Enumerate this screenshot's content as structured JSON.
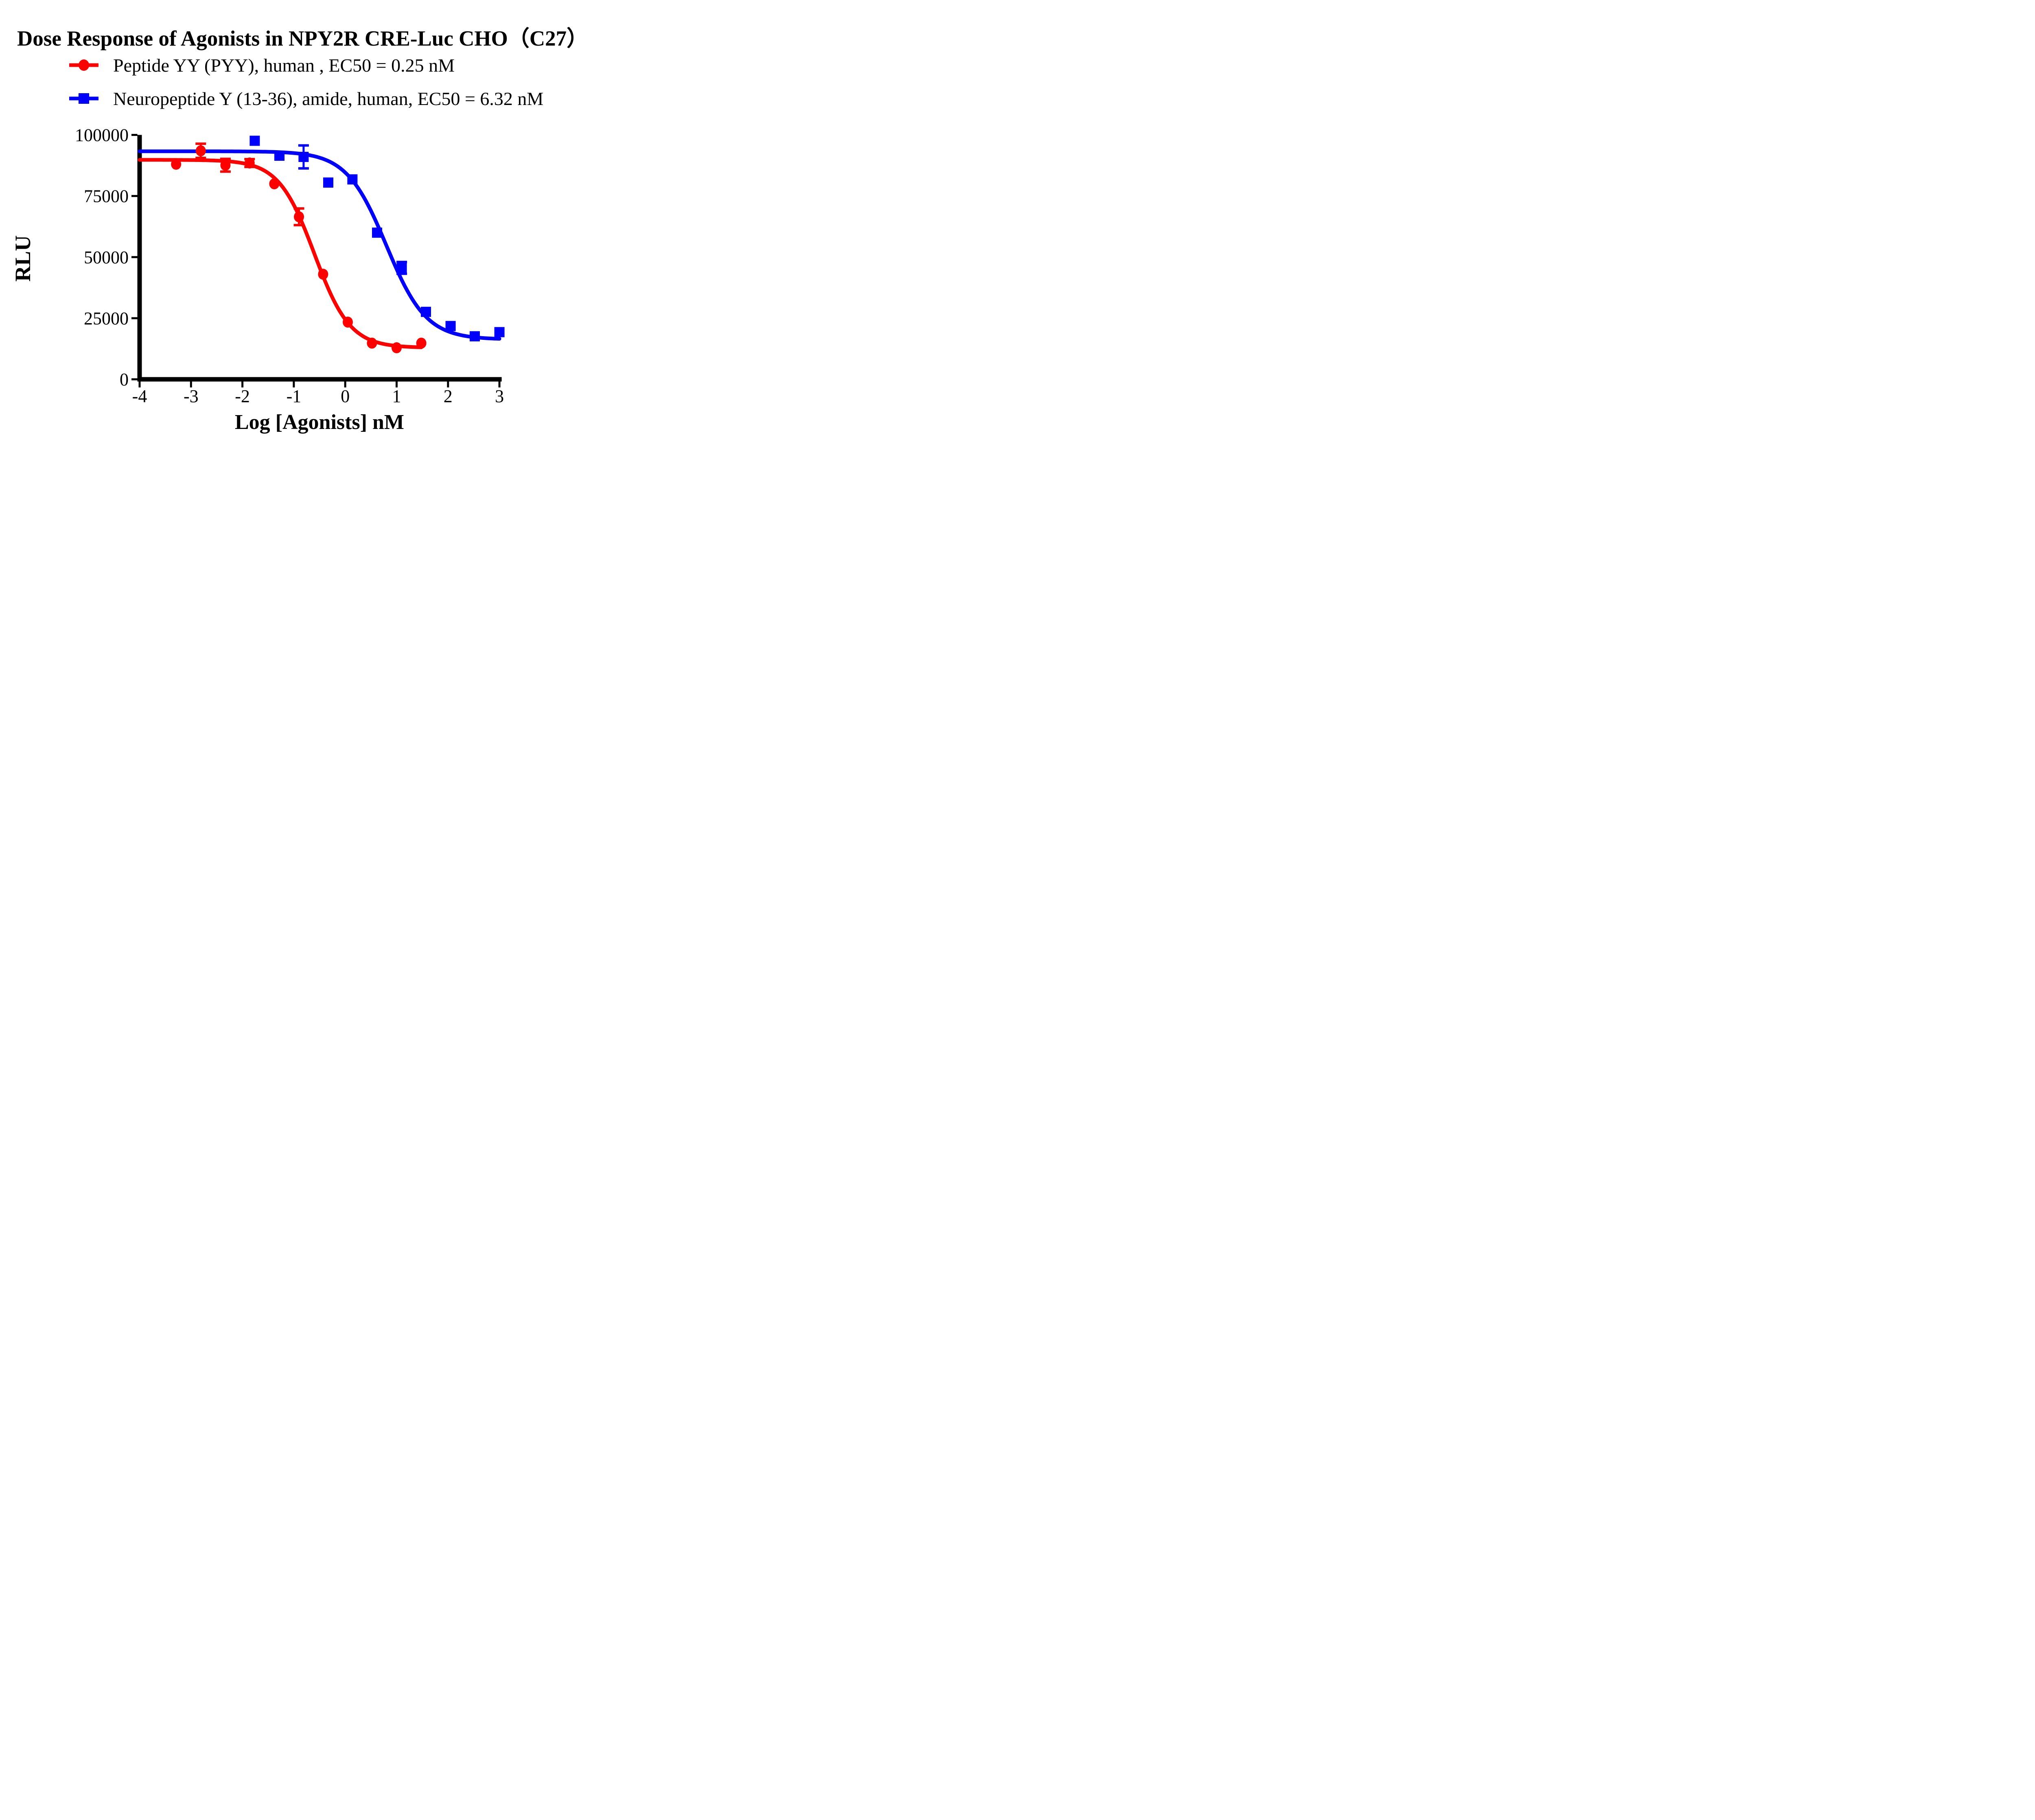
{
  "title": "Dose Response of Agonists in NPY2R CRE-Luc CHO（C27）",
  "legend": [
    {
      "label": "Peptide YY (PYY), human , EC50 = 0.25 nM",
      "marker": "circle",
      "color": "#FF0000"
    },
    {
      "label": "Neuropeptide Y (13-36), amide, human, EC50 = 6.32 nM",
      "marker": "square",
      "color": "#0000FF"
    }
  ],
  "x_axis": {
    "title": "Log [Agonists] nM",
    "min": -4,
    "max": 3,
    "ticks": [
      -4,
      -3,
      -2,
      -1,
      0,
      1,
      2,
      3
    ],
    "tick_labels": [
      "-4",
      "-3",
      "-2",
      "-1",
      "0",
      "1",
      "2",
      "3"
    ]
  },
  "y_axis": {
    "title": "RLU",
    "min": 0,
    "max": 100000,
    "ticks": [
      0,
      25000,
      50000,
      75000,
      100000
    ],
    "tick_labels": [
      "0",
      "25000",
      "50000",
      "75000",
      "100000"
    ]
  },
  "colors": {
    "series_red": "#FF0000",
    "series_blue": "#0000FF",
    "axis": "#000000",
    "background": "#FFFFFF"
  },
  "chart_data": {
    "type": "scatter",
    "title": "Dose Response of Agonists in NPY2R CRE-Luc CHO（C27）",
    "xlabel": "Log [Agonists] nM",
    "ylabel": "RLU",
    "xlim": [
      -4,
      3
    ],
    "ylim": [
      0,
      100000
    ],
    "grid": false,
    "legend_position": "top-left",
    "series": [
      {
        "name": "Peptide YY (PYY), human",
        "ec50_label": "EC50 = 0.25 nM",
        "ec50_nM": 0.25,
        "color": "#FF0000",
        "marker": "circle",
        "points": [
          {
            "x": -3.29,
            "y": 88000,
            "err": 0
          },
          {
            "x": -2.81,
            "y": 93500,
            "err": 2900
          },
          {
            "x": -2.33,
            "y": 87600,
            "err": 2600
          },
          {
            "x": -1.86,
            "y": 88500,
            "err": 1600
          },
          {
            "x": -1.38,
            "y": 80000,
            "err": 0
          },
          {
            "x": -0.9,
            "y": 66500,
            "err": 3400
          },
          {
            "x": -0.43,
            "y": 43000,
            "err": 0
          },
          {
            "x": 0.05,
            "y": 23400,
            "err": 0
          },
          {
            "x": 0.52,
            "y": 14800,
            "err": 0
          },
          {
            "x": 1.0,
            "y": 12900,
            "err": 0
          },
          {
            "x": 1.48,
            "y": 14800,
            "err": 0
          }
        ],
        "fit": {
          "model": "4PL",
          "top": 89800,
          "bottom": 12900,
          "logEC50": -0.6,
          "hill": 1.25,
          "x_start": -4,
          "x_end": 1.48
        }
      },
      {
        "name": "Neuropeptide Y (13-36), amide, human",
        "ec50_label": "EC50 = 6.32 nM",
        "ec50_nM": 6.32,
        "color": "#0000FF",
        "marker": "square",
        "points": [
          {
            "x": -1.76,
            "y": 97600,
            "err": 0
          },
          {
            "x": -1.28,
            "y": 91500,
            "err": 0
          },
          {
            "x": -0.81,
            "y": 91000,
            "err": 4700
          },
          {
            "x": -0.33,
            "y": 80500,
            "err": 0
          },
          {
            "x": 0.14,
            "y": 81800,
            "err": 0
          },
          {
            "x": 0.62,
            "y": 60000,
            "err": 0
          },
          {
            "x": 1.1,
            "y": 45600,
            "err": 2400
          },
          {
            "x": 1.57,
            "y": 27600,
            "err": 0
          },
          {
            "x": 2.05,
            "y": 21800,
            "err": 0
          },
          {
            "x": 2.52,
            "y": 17600,
            "err": 0
          },
          {
            "x": 3.0,
            "y": 19300,
            "err": 0
          }
        ],
        "fit": {
          "model": "4PL",
          "top": 93300,
          "bottom": 16300,
          "logEC50": 0.8,
          "hill": 1.12,
          "x_start": -4,
          "x_end": 3.0
        }
      }
    ]
  }
}
